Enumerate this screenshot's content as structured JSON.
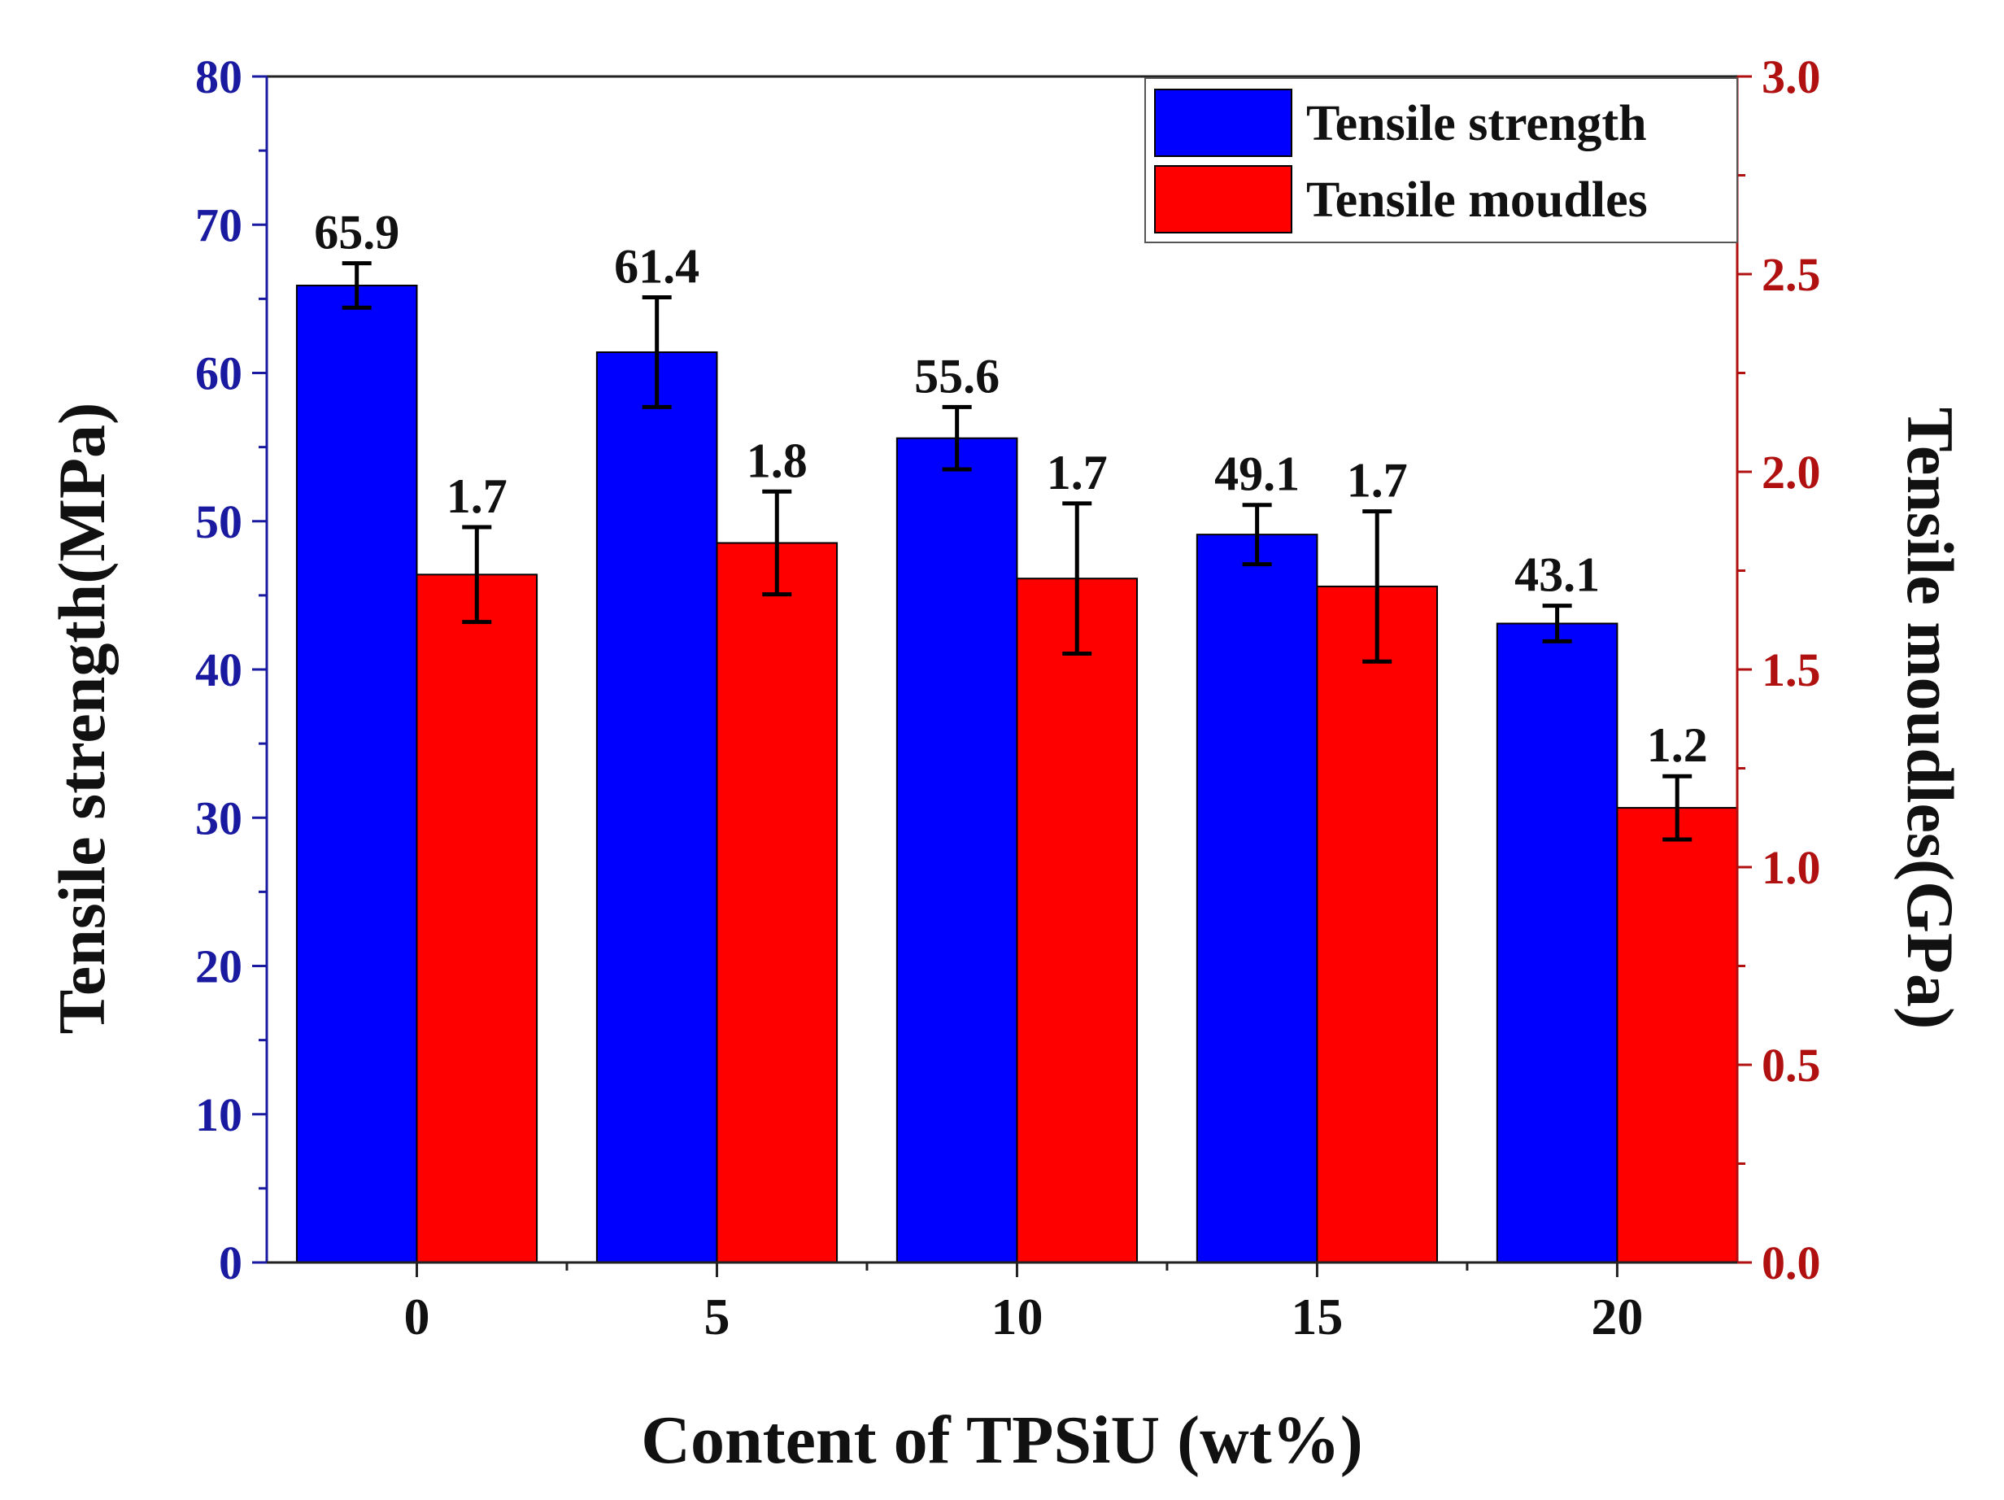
{
  "chart_data": {
    "type": "bar",
    "xlabel": "Content of TPSiU (wt%)",
    "categories": [
      "0",
      "5",
      "10",
      "15",
      "20"
    ],
    "left_axis": {
      "label": "Tensile strength(MPa)",
      "range": [
        0,
        80
      ],
      "ticks": [
        0,
        10,
        20,
        30,
        40,
        50,
        60,
        70,
        80
      ],
      "tick_labels": [
        "0",
        "10",
        "20",
        "30",
        "40",
        "50",
        "60",
        "70",
        "80"
      ],
      "color": "#1a1aa0"
    },
    "right_axis": {
      "label": "Tensile moudles(GPa)",
      "range": [
        0,
        3
      ],
      "ticks": [
        0,
        0.5,
        1,
        1.5,
        2,
        2.5,
        3
      ],
      "tick_labels": [
        "0.0",
        "0.5",
        "1.0",
        "1.5",
        "2.0",
        "2.5",
        "3.0"
      ],
      "color": "#b01010"
    },
    "series": [
      {
        "name": "Tensile strength",
        "axis": "left",
        "color": "#0000ff",
        "values": [
          65.9,
          61.4,
          55.6,
          49.1,
          43.1
        ],
        "errors": [
          1.5,
          3.7,
          2.1,
          2.0,
          1.2
        ],
        "data_labels": [
          "65.9",
          "61.4",
          "55.6",
          "49.1",
          "43.1"
        ]
      },
      {
        "name": "Tensile moudles",
        "axis": "right",
        "color": "#ff0000",
        "values": [
          1.74,
          1.82,
          1.73,
          1.71,
          1.15
        ],
        "errors": [
          0.12,
          0.13,
          0.19,
          0.19,
          0.08
        ],
        "data_labels": [
          "1.7",
          "1.8",
          "1.7",
          "1.7",
          "1.2"
        ]
      }
    ],
    "legend": "top-right",
    "grid": false
  }
}
